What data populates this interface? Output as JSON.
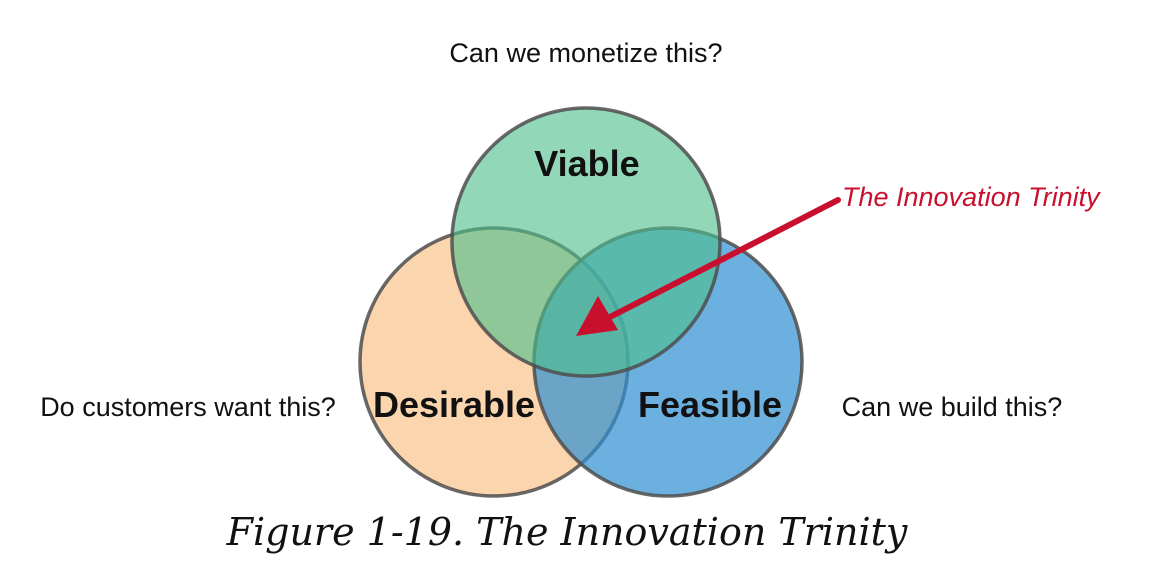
{
  "diagram": {
    "top_question": "Can we monetize this?",
    "left_question": "Do customers want this?",
    "right_question": "Can we build this?",
    "circles": [
      {
        "id": "viable",
        "label": "Viable",
        "color": "#4dbf8c"
      },
      {
        "id": "desirable",
        "label": "Desirable",
        "color": "#f7b36a"
      },
      {
        "id": "feasible",
        "label": "Feasible",
        "color": "#2e8fd1"
      }
    ],
    "callout": {
      "label": "The Innovation Trinity",
      "color": "#c8102e"
    },
    "caption": "Figure 1-19. The Innovation Trinity"
  }
}
